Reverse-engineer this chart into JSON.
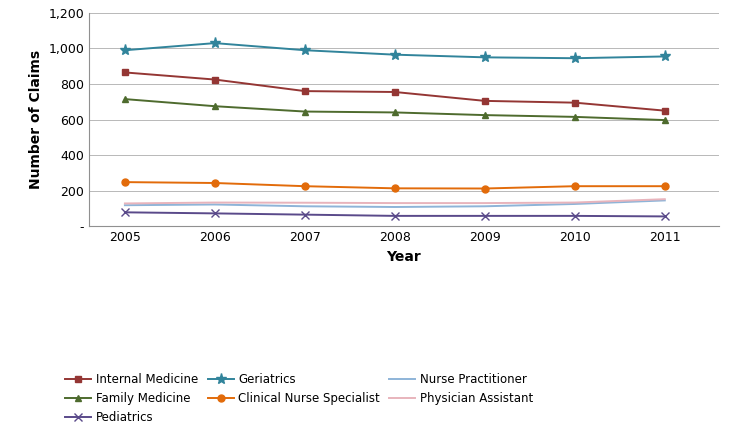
{
  "years": [
    2005,
    2006,
    2007,
    2008,
    2009,
    2010,
    2011
  ],
  "series": {
    "Internal Medicine": {
      "values": [
        865,
        825,
        760,
        755,
        705,
        695,
        650
      ],
      "color": "#943634",
      "marker": "s",
      "markersize": 5
    },
    "Family Medicine": {
      "values": [
        715,
        675,
        645,
        640,
        625,
        615,
        597
      ],
      "color": "#4e6b2e",
      "marker": "^",
      "markersize": 5
    },
    "Pediatrics": {
      "values": [
        78,
        72,
        65,
        58,
        58,
        58,
        55
      ],
      "color": "#5a4a8a",
      "marker": "x",
      "markersize": 6
    },
    "Geriatrics": {
      "values": [
        990,
        1030,
        990,
        965,
        950,
        945,
        955
      ],
      "color": "#31849b",
      "marker": "*",
      "markersize": 8
    },
    "Clinical Nurse Specialist": {
      "values": [
        248,
        243,
        225,
        213,
        212,
        225,
        225
      ],
      "color": "#e26b0a",
      "marker": "o",
      "markersize": 5
    },
    "Nurse Practitioner": {
      "values": [
        118,
        122,
        112,
        108,
        112,
        125,
        145
      ],
      "color": "#8eb4d8",
      "marker": null,
      "markersize": 0
    },
    "Physician Assistant": {
      "values": [
        128,
        133,
        132,
        130,
        130,
        133,
        152
      ],
      "color": "#e8b4bc",
      "marker": null,
      "markersize": 0
    }
  },
  "linewidth": 1.4,
  "xlabel": "Year",
  "ylabel": "Number of Claims",
  "ylim": [
    0,
    1200
  ],
  "yticks": [
    0,
    200,
    400,
    600,
    800,
    1000,
    1200
  ],
  "ytick_labels": [
    "-",
    "200",
    "400",
    "600",
    "800",
    "1,000",
    "1,200"
  ],
  "figsize": [
    7.41,
    4.3
  ],
  "dpi": 100,
  "background_color": "#ffffff",
  "grid_color": "#b8b8b8",
  "legend_order": [
    "Internal Medicine",
    "Family Medicine",
    "Pediatrics",
    "Geriatrics",
    "Clinical Nurse Specialist",
    "Nurse Practitioner",
    "Physician Assistant"
  ]
}
